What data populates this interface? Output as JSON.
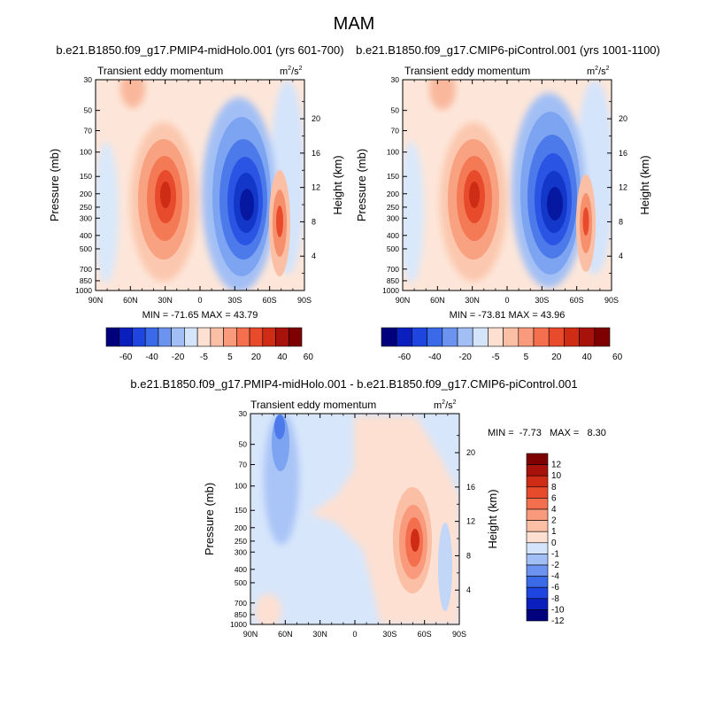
{
  "figure": {
    "title": "MAM"
  },
  "colors": {
    "div_scale": [
      "#00007f",
      "#0b1fbf",
      "#1f45e0",
      "#3b6ae8",
      "#6b93ef",
      "#a2bff5",
      "#d4e4fb",
      "#fde0d2",
      "#fbbfa6",
      "#f89a7b",
      "#f46f4e",
      "#e84a2c",
      "#cf2c16",
      "#a7130a",
      "#7f0000"
    ],
    "diff_scale": [
      "#00007f",
      "#0b1fbf",
      "#1f45e0",
      "#3b6ae8",
      "#6b93ef",
      "#a2bff5",
      "#d4e4fb",
      "#fde0d2",
      "#fbbfa6",
      "#f89a7b",
      "#f46f4e",
      "#e84a2c",
      "#cf2c16",
      "#a7130a",
      "#7f0000"
    ]
  },
  "chart_data": [
    {
      "type": "heatmap",
      "title": "b.e21.B1850.f09_g17.PMIP4-midHolo.001 (yrs 601-700)",
      "subtitle_left": "Transient eddy momentum",
      "units": "m2/s2",
      "xlabel": "",
      "ylabel": "Pressure (mb)",
      "ylabel_right": "Height (km)",
      "x_ticks": [
        "90N",
        "60N",
        "30N",
        "0",
        "30S",
        "60S",
        "90S"
      ],
      "y_ticks": [
        "30",
        "50",
        "70",
        "100",
        "150",
        "200",
        "250",
        "300",
        "400",
        "500",
        "700",
        "850",
        "1000"
      ],
      "y_ticks_right": [
        "20",
        "16",
        "12",
        "8",
        "4"
      ],
      "stats_text": "MIN = -71.65   MAX =  43.79",
      "min": -71.65,
      "max": 43.79,
      "features": [
        {
          "lat": 28,
          "p": 230,
          "value": 43.79
        },
        {
          "lat": -40,
          "p": 250,
          "value": -71.65
        },
        {
          "lat": -68,
          "p": 300,
          "value": 35
        },
        {
          "lat": 68,
          "p": 40,
          "value": 12
        }
      ],
      "colorbar": {
        "labels": [
          "-60",
          "-40",
          "-20",
          "-5",
          "5",
          "20",
          "40",
          "60"
        ]
      }
    },
    {
      "type": "heatmap",
      "title": "b.e21.B1850.f09_g17.CMIP6-piControl.001 (yrs 1001-1100)",
      "subtitle_left": "Transient eddy momentum",
      "units": "m2/s2",
      "xlabel": "",
      "ylabel": "Pressure (mb)",
      "ylabel_right": "Height (km)",
      "x_ticks": [
        "90N",
        "60N",
        "30N",
        "0",
        "30S",
        "60S",
        "90S"
      ],
      "y_ticks": [
        "30",
        "50",
        "70",
        "100",
        "150",
        "200",
        "250",
        "300",
        "400",
        "500",
        "700",
        "850",
        "1000"
      ],
      "y_ticks_right": [
        "20",
        "16",
        "12",
        "8",
        "4"
      ],
      "stats_text": "MIN = -73.81   MAX =  43.96",
      "min": -73.81,
      "max": 43.96,
      "features": [
        {
          "lat": 30,
          "p": 230,
          "value": 43.96
        },
        {
          "lat": -37,
          "p": 240,
          "value": -73.81
        },
        {
          "lat": -63,
          "p": 300,
          "value": 35
        },
        {
          "lat": 70,
          "p": 40,
          "value": 12
        }
      ],
      "colorbar": {
        "labels": [
          "-60",
          "-40",
          "-20",
          "-5",
          "5",
          "20",
          "40",
          "60"
        ]
      }
    },
    {
      "type": "heatmap",
      "title": "b.e21.B1850.f09_g17.PMIP4-midHolo.001 - b.e21.B1850.f09_g17.CMIP6-piControl.001",
      "subtitle_left": "Transient eddy momentum",
      "units": "m2/s2",
      "xlabel": "",
      "ylabel": "Pressure (mb)",
      "ylabel_right": "Height (km)",
      "x_ticks": [
        "90N",
        "60N",
        "30N",
        "0",
        "30S",
        "60S",
        "90S"
      ],
      "y_ticks": [
        "30",
        "50",
        "70",
        "100",
        "150",
        "200",
        "250",
        "300",
        "400",
        "500",
        "700",
        "850",
        "1000"
      ],
      "y_ticks_right": [
        "20",
        "16",
        "12",
        "8",
        "4"
      ],
      "stats_text": "MIN =  -7.73   MAX =   8.30",
      "min": -7.73,
      "max": 8.3,
      "features": [
        {
          "lat": -50,
          "p": 250,
          "value": 8.3
        },
        {
          "lat": 65,
          "p": 40,
          "value": -7.73
        },
        {
          "lat": 60,
          "p": 70,
          "value": -3
        }
      ],
      "colorbar": {
        "labels": [
          "12",
          "10",
          "8",
          "6",
          "4",
          "2",
          "1",
          "0",
          "-1",
          "-2",
          "-4",
          "-6",
          "-8",
          "-10",
          "-12"
        ]
      }
    }
  ]
}
